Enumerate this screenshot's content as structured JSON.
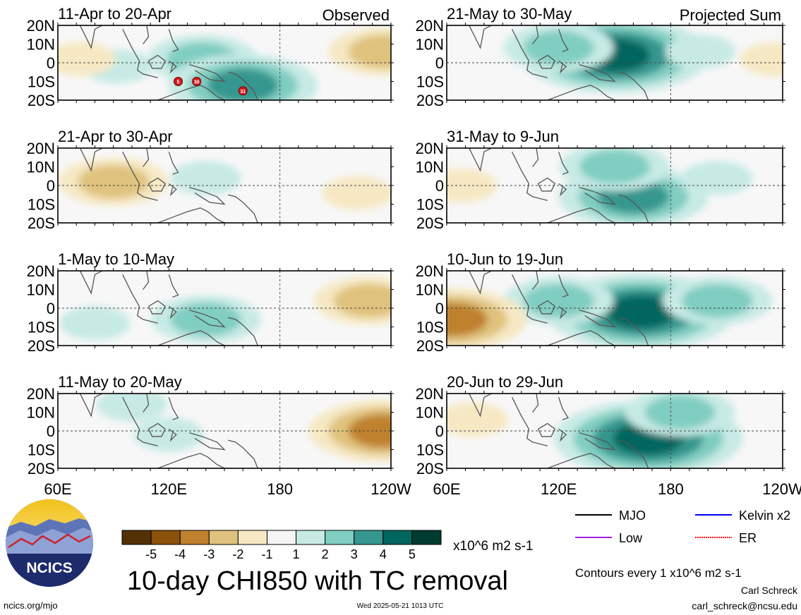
{
  "figure": {
    "title": "10-day CHI850 with TC removal",
    "footer_left": "ncics.org/mjo",
    "timestamp": "Wed 2025-05-21 1013 UTC",
    "author": "Carl Schreck",
    "email": "carl_schreck@ncsu.edu",
    "logo_text": "NCICS",
    "contours_note": "Contours every 1 x10^6 m2 s-1",
    "units": "x10^6 m2 s-1"
  },
  "columns": [
    {
      "label": "Observed"
    },
    {
      "label": "Projected Sum"
    }
  ],
  "colorbar": {
    "ticks": [
      "-5",
      "-4",
      "-3",
      "-2",
      "-1",
      "1",
      "2",
      "3",
      "4",
      "5"
    ],
    "colors": [
      "#543005",
      "#8c510a",
      "#bf812d",
      "#dfc27d",
      "#f6e8c3",
      "#f5f5f5",
      "#c7eae5",
      "#80cdc1",
      "#35978f",
      "#01665e",
      "#003c30"
    ]
  },
  "legend": [
    {
      "label": "MJO",
      "color": "#000000",
      "style": "solid"
    },
    {
      "label": "Kelvin x2",
      "color": "#0000ff",
      "style": "solid"
    },
    {
      "label": "Low",
      "color": "#a020f0",
      "style": "solid"
    },
    {
      "label": "ER",
      "color": "#ff0000",
      "style": "dotted"
    }
  ],
  "chart_data": [
    {
      "type": "heatmap",
      "title": "11-Apr to 20-Apr",
      "column": "Observed",
      "x_ticks": [
        "60E",
        "120E",
        "180",
        "120W"
      ],
      "y_ticks": [
        "20N",
        "10N",
        "0",
        "10S",
        "20S"
      ],
      "xlim": [
        60,
        240
      ],
      "ylim": [
        -20,
        20
      ],
      "tc_markers": [
        "5",
        "30",
        "31"
      ],
      "anomalies": [
        {
          "lon": 92,
          "lat": -2,
          "level": 1
        },
        {
          "lon": 138,
          "lat": 2,
          "level": 2
        },
        {
          "lon": 160,
          "lat": -12,
          "level": 3
        },
        {
          "lon": 236,
          "lat": 6,
          "level": -2
        },
        {
          "lon": 72,
          "lat": 2,
          "level": -1
        }
      ]
    },
    {
      "type": "heatmap",
      "title": "21-May to 30-May",
      "column": "Projected Sum",
      "x_ticks": [
        "60E",
        "120E",
        "180",
        "120W"
      ],
      "y_ticks": [
        "20N",
        "10N",
        "0",
        "10S",
        "20S"
      ],
      "xlim": [
        60,
        240
      ],
      "ylim": [
        -20,
        20
      ],
      "tc_markers": [],
      "anomalies": [
        {
          "lon": 150,
          "lat": 4,
          "level": 4
        },
        {
          "lon": 120,
          "lat": 8,
          "level": 2
        },
        {
          "lon": 196,
          "lat": 6,
          "level": 1
        },
        {
          "lon": 236,
          "lat": 2,
          "level": -1
        }
      ]
    },
    {
      "type": "heatmap",
      "title": "21-Apr to 30-Apr",
      "column": "Observed",
      "x_ticks": [
        "60E",
        "120E",
        "180",
        "120W"
      ],
      "y_ticks": [
        "20N",
        "10N",
        "0",
        "10S",
        "20S"
      ],
      "xlim": [
        60,
        240
      ],
      "ylim": [
        -20,
        20
      ],
      "tc_markers": [],
      "anomalies": [
        {
          "lon": 90,
          "lat": 2,
          "level": -2
        },
        {
          "lon": 140,
          "lat": 4,
          "level": 1
        },
        {
          "lon": 222,
          "lat": -4,
          "level": -1
        }
      ]
    },
    {
      "type": "heatmap",
      "title": "31-May to 9-Jun",
      "column": "Projected Sum",
      "x_ticks": [
        "60E",
        "120E",
        "180",
        "120W"
      ],
      "y_ticks": [
        "20N",
        "10N",
        "0",
        "10S",
        "20S"
      ],
      "xlim": [
        60,
        240
      ],
      "ylim": [
        -20,
        20
      ],
      "tc_markers": [],
      "anomalies": [
        {
          "lon": 160,
          "lat": -6,
          "level": 3
        },
        {
          "lon": 150,
          "lat": 10,
          "level": 2
        },
        {
          "lon": 205,
          "lat": 4,
          "level": 1
        },
        {
          "lon": 68,
          "lat": 0,
          "level": -1
        }
      ]
    },
    {
      "type": "heatmap",
      "title": "1-May to 10-May",
      "column": "Observed",
      "x_ticks": [
        "60E",
        "120E",
        "180",
        "120W"
      ],
      "y_ticks": [
        "20N",
        "10N",
        "0",
        "10S",
        "20S"
      ],
      "xlim": [
        60,
        240
      ],
      "ylim": [
        -20,
        20
      ],
      "tc_markers": [],
      "anomalies": [
        {
          "lon": 140,
          "lat": -6,
          "level": 2
        },
        {
          "lon": 80,
          "lat": -8,
          "level": 1
        },
        {
          "lon": 228,
          "lat": 4,
          "level": -2
        }
      ]
    },
    {
      "type": "heatmap",
      "title": "10-Jun to 19-Jun",
      "column": "Projected Sum",
      "x_ticks": [
        "60E",
        "120E",
        "180",
        "120W"
      ],
      "y_ticks": [
        "20N",
        "10N",
        "0",
        "10S",
        "20S"
      ],
      "xlim": [
        60,
        240
      ],
      "ylim": [
        -20,
        20
      ],
      "tc_markers": [],
      "anomalies": [
        {
          "lon": 164,
          "lat": -2,
          "level": 4
        },
        {
          "lon": 120,
          "lat": 4,
          "level": 2
        },
        {
          "lon": 205,
          "lat": 4,
          "level": 2
        },
        {
          "lon": 63,
          "lat": -6,
          "level": -3
        }
      ]
    },
    {
      "type": "heatmap",
      "title": "11-May to 20-May",
      "column": "Observed",
      "x_ticks": [
        "60E",
        "120E",
        "180",
        "120W"
      ],
      "y_ticks": [
        "20N",
        "10N",
        "0",
        "10S",
        "20S"
      ],
      "xlim": [
        60,
        240
      ],
      "ylim": [
        -20,
        20
      ],
      "tc_markers": [],
      "anomalies": [
        {
          "lon": 120,
          "lat": -2,
          "level": 1
        },
        {
          "lon": 236,
          "lat": 0,
          "level": -3
        },
        {
          "lon": 100,
          "lat": 14,
          "level": 1
        }
      ]
    },
    {
      "type": "heatmap",
      "title": "20-Jun to 29-Jun",
      "column": "Projected Sum",
      "x_ticks": [
        "60E",
        "120E",
        "180",
        "120W"
      ],
      "y_ticks": [
        "20N",
        "10N",
        "0",
        "10S",
        "20S"
      ],
      "xlim": [
        60,
        240
      ],
      "ylim": [
        -20,
        20
      ],
      "tc_markers": [],
      "anomalies": [
        {
          "lon": 168,
          "lat": -4,
          "level": 4
        },
        {
          "lon": 185,
          "lat": 10,
          "level": 2
        },
        {
          "lon": 74,
          "lat": 6,
          "level": -1
        }
      ]
    }
  ]
}
